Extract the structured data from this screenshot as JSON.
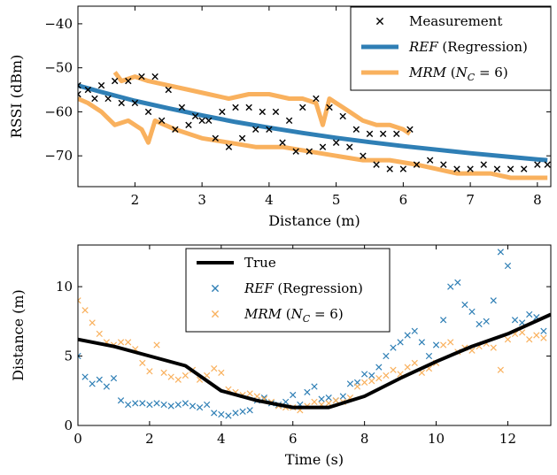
{
  "colors": {
    "measurement": "#000000",
    "ref": "#2f7fb5",
    "mrm": "#f9b15e",
    "true": "#000000"
  },
  "chart_data": [
    {
      "type": "scatter",
      "xlabel": "Distance (m)",
      "ylabel": "RSSI (dBm)",
      "xlim": [
        1.15,
        8.2
      ],
      "ylim": [
        -77,
        -36
      ],
      "xticks": [
        2,
        3,
        4,
        5,
        6,
        7,
        8
      ],
      "yticks": [
        -70,
        -60,
        -50,
        -40
      ],
      "xtick_labels": [
        "2",
        "3",
        "4",
        "5",
        "6",
        "7",
        "8"
      ],
      "ytick_labels": [
        "−70",
        "−60",
        "−50",
        "−40"
      ],
      "grid": false,
      "legend_position": "top-right",
      "legend": [
        {
          "series": "measurement",
          "label": "Measurement",
          "italic_part": "",
          "marker": "×"
        },
        {
          "series": "ref",
          "label": " (Regression)",
          "italic_part": "REF",
          "marker": "line"
        },
        {
          "series": "mrm",
          "label": "",
          "italic_part": "MRM",
          "math": "(N_C = 6)",
          "marker": "line"
        }
      ],
      "series": [
        {
          "key": "measurement",
          "kind": "markers",
          "segments": [
            {
              "x": [
                1.15,
                1.3,
                1.5,
                1.7,
                1.9,
                2.1,
                2.3,
                2.5,
                2.7,
                2.9,
                3.1,
                3.3,
                3.5,
                3.7,
                3.9,
                4.1,
                4.3,
                4.5,
                4.7,
                4.9,
                5.1,
                5.3,
                5.5,
                5.7,
                5.9,
                6.1
              ],
              "y": [
                -56,
                -55,
                -54,
                -53,
                -53,
                -52,
                -52,
                -55,
                -59,
                -61,
                -62,
                -60,
                -59,
                -59,
                -60,
                -60,
                -62,
                -59,
                -57,
                -59,
                -61,
                -64,
                -65,
                -65,
                -65,
                -64
              ]
            },
            {
              "x": [
                1.15,
                1.4,
                1.6,
                1.8,
                2.0,
                2.2,
                2.4,
                2.6,
                2.8,
                3.0,
                3.2,
                3.4,
                3.6,
                3.8,
                4.0,
                4.2,
                4.4,
                4.6,
                4.8,
                5.0,
                5.2,
                5.4,
                5.6,
                5.8,
                6.0,
                6.2,
                6.4,
                6.6,
                6.8,
                7.0,
                7.2,
                7.4,
                7.6,
                7.8,
                8.0,
                8.15
              ],
              "y": [
                -54,
                -57,
                -57,
                -58,
                -58,
                -60,
                -62,
                -64,
                -63,
                -62,
                -66,
                -68,
                -66,
                -64,
                -64,
                -67,
                -69,
                -69,
                -68,
                -67,
                -68,
                -70,
                -72,
                -73,
                -73,
                -72,
                -71,
                -72,
                -73,
                -73,
                -72,
                -73,
                -73,
                -73,
                -72,
                -72
              ]
            }
          ]
        },
        {
          "key": "ref",
          "kind": "line",
          "x": [
            1.15,
            1.5,
            2.0,
            2.5,
            3.0,
            3.5,
            4.0,
            4.5,
            5.0,
            5.5,
            6.0,
            6.5,
            7.0,
            7.5,
            8.0,
            8.15
          ],
          "y": [
            -54.0,
            -55.5,
            -57.5,
            -59.2,
            -60.8,
            -62.3,
            -63.6,
            -64.8,
            -65.9,
            -66.9,
            -67.8,
            -68.6,
            -69.4,
            -70.1,
            -70.8,
            -71.0
          ]
        },
        {
          "key": "mrm",
          "kind": "line",
          "segments": [
            {
              "x": [
                1.7,
                1.8,
                2.0,
                2.2,
                2.5,
                2.8,
                3.1,
                3.4,
                3.7,
                4.0,
                4.3,
                4.5,
                4.7,
                4.8,
                4.9,
                5.0,
                5.2,
                5.4,
                5.6,
                5.8,
                6.0,
                6.1
              ],
              "y": [
                -51,
                -53,
                -52,
                -53,
                -54,
                -55,
                -56,
                -57,
                -56,
                -56,
                -57,
                -57,
                -58,
                -63,
                -57,
                -58,
                -60,
                -62,
                -63,
                -63,
                -64,
                -65
              ]
            },
            {
              "x": [
                1.15,
                1.3,
                1.5,
                1.7,
                1.9,
                2.1,
                2.2,
                2.3,
                2.6,
                3.0,
                3.4,
                3.8,
                4.2,
                4.6,
                5.0,
                5.4,
                5.8,
                6.2,
                6.5,
                6.8,
                7.0,
                7.3,
                7.6,
                7.9,
                8.15
              ],
              "y": [
                -57,
                -58,
                -60,
                -63,
                -62,
                -64,
                -67,
                -62,
                -64,
                -66,
                -67,
                -68,
                -68,
                -69,
                -70,
                -71,
                -71,
                -72,
                -73,
                -74,
                -74,
                -74,
                -75,
                -75,
                -75
              ]
            }
          ]
        }
      ]
    },
    {
      "type": "scatter",
      "xlabel": "Time (s)",
      "ylabel": "Distance (m)",
      "xlim": [
        0,
        13.2
      ],
      "ylim": [
        0,
        13
      ],
      "xticks": [
        0,
        2,
        4,
        6,
        8,
        10,
        12
      ],
      "yticks": [
        0,
        5,
        10
      ],
      "xtick_labels": [
        "0",
        "2",
        "4",
        "6",
        "8",
        "10",
        "12"
      ],
      "ytick_labels": [
        "0",
        "5",
        "10"
      ],
      "grid": false,
      "legend_position": "top-center",
      "legend": [
        {
          "series": "true",
          "label": "True",
          "italic_part": "",
          "marker": "line"
        },
        {
          "series": "ref",
          "label": " (Regression)",
          "italic_part": "REF",
          "marker": "×"
        },
        {
          "series": "mrm",
          "label": "",
          "italic_part": "MRM",
          "math": "(N_C = 6)",
          "marker": "×"
        }
      ],
      "series": [
        {
          "key": "true",
          "kind": "line",
          "x": [
            0,
            1,
            2,
            3,
            4,
            5,
            6,
            7,
            8,
            9,
            10,
            11,
            12,
            13.2
          ],
          "y": [
            6.2,
            5.7,
            5.0,
            4.3,
            2.5,
            1.8,
            1.3,
            1.3,
            2.1,
            3.4,
            4.6,
            5.7,
            6.6,
            8.0
          ]
        },
        {
          "key": "ref",
          "kind": "markers",
          "x": [
            0,
            0.2,
            0.4,
            0.6,
            0.8,
            1.0,
            1.2,
            1.4,
            1.6,
            1.8,
            2.0,
            2.2,
            2.4,
            2.6,
            2.8,
            3.0,
            3.2,
            3.4,
            3.6,
            3.8,
            4.0,
            4.2,
            4.4,
            4.6,
            4.8,
            5.0,
            5.2,
            5.4,
            5.6,
            5.8,
            6.0,
            6.2,
            6.4,
            6.6,
            6.8,
            7.0,
            7.2,
            7.4,
            7.6,
            7.8,
            8.0,
            8.2,
            8.4,
            8.6,
            8.8,
            9.0,
            9.2,
            9.4,
            9.6,
            9.8,
            10.0,
            10.2,
            10.4,
            10.6,
            10.8,
            11.0,
            11.2,
            11.4,
            11.6,
            11.8,
            12.0,
            12.2,
            12.4,
            12.6,
            12.8,
            13.0
          ],
          "y": [
            5.0,
            3.5,
            3.0,
            3.3,
            2.8,
            3.4,
            1.8,
            1.5,
            1.6,
            1.6,
            1.5,
            1.6,
            1.5,
            1.4,
            1.5,
            1.6,
            1.4,
            1.3,
            1.5,
            0.9,
            0.8,
            0.7,
            0.9,
            1.0,
            1.1,
            1.8,
            2.0,
            1.6,
            1.5,
            1.7,
            2.2,
            1.5,
            2.4,
            2.8,
            1.9,
            2.0,
            1.8,
            2.1,
            3.0,
            3.1,
            3.7,
            3.6,
            4.2,
            5.0,
            5.6,
            6.0,
            6.5,
            6.8,
            6.0,
            5.0,
            5.8,
            7.6,
            10.0,
            10.3,
            8.7,
            8.2,
            7.3,
            7.5,
            9.0,
            12.5,
            11.5,
            7.6,
            7.4,
            8.0,
            7.8,
            6.8
          ]
        },
        {
          "key": "mrm",
          "kind": "markers",
          "x": [
            0,
            0.2,
            0.4,
            0.6,
            0.8,
            1.0,
            1.2,
            1.4,
            1.6,
            1.8,
            2.0,
            2.2,
            2.4,
            2.6,
            2.8,
            3.0,
            3.2,
            3.4,
            3.6,
            3.8,
            4.0,
            4.2,
            4.4,
            4.6,
            4.8,
            5.0,
            5.2,
            5.4,
            5.6,
            5.8,
            6.0,
            6.2,
            6.4,
            6.6,
            6.8,
            7.0,
            7.2,
            7.4,
            7.6,
            7.8,
            8.0,
            8.2,
            8.4,
            8.6,
            8.8,
            9.0,
            9.2,
            9.4,
            9.6,
            9.8,
            10.0,
            10.2,
            10.4,
            10.6,
            10.8,
            11.0,
            11.2,
            11.4,
            11.6,
            11.8,
            12.0,
            12.2,
            12.4,
            12.6,
            12.8,
            13.0
          ],
          "y": [
            9.0,
            8.3,
            7.4,
            6.6,
            6.0,
            5.8,
            6.0,
            6.0,
            5.5,
            4.5,
            3.9,
            5.8,
            3.8,
            3.5,
            3.3,
            3.6,
            4.0,
            3.3,
            3.6,
            4.1,
            3.8,
            2.6,
            2.4,
            2.2,
            2.3,
            2.1,
            1.9,
            1.7,
            1.4,
            1.3,
            1.3,
            1.1,
            1.4,
            1.7,
            1.5,
            1.6,
            1.8,
            1.7,
            2.0,
            2.8,
            3.1,
            3.2,
            3.4,
            3.6,
            4.0,
            3.7,
            4.2,
            4.5,
            3.8,
            4.1,
            4.5,
            5.8,
            6.0,
            5.3,
            5.6,
            5.4,
            5.7,
            5.9,
            5.6,
            4.0,
            6.2,
            6.6,
            6.7,
            6.2,
            6.5,
            6.3
          ]
        }
      ]
    }
  ]
}
